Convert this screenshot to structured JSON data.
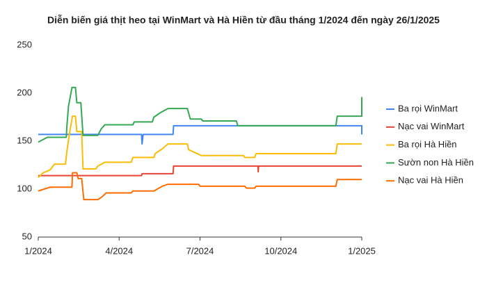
{
  "chart_data": {
    "type": "line",
    "title": "Diễn biến giá thịt heo tại WinMart và Hà Hiền từ đầu tháng 1/2024 đến ngày 26/1/2025",
    "xlim": [
      0,
      12
    ],
    "xticks": [
      {
        "value": 0,
        "label": "1/2024"
      },
      {
        "value": 3,
        "label": "4/2024"
      },
      {
        "value": 6,
        "label": "7/2024"
      },
      {
        "value": 9,
        "label": "10/2024"
      },
      {
        "value": 12,
        "label": "1/2025"
      }
    ],
    "ylim": [
      50,
      250
    ],
    "yticks": [
      50,
      100,
      150,
      200,
      250
    ],
    "grid": false,
    "legend": "right",
    "series": [
      {
        "name": "Ba rọi WinMart",
        "color": "#4285f4",
        "x": [
          0,
          3.83,
          3.85,
          3.89,
          5.0,
          5.02,
          12,
          12
        ],
        "values": [
          157,
          157,
          147,
          157,
          157,
          166,
          166,
          157
        ]
      },
      {
        "name": "Nạc vai WinMart",
        "color": "#ea4335",
        "x": [
          0,
          3.83,
          3.85,
          5.0,
          5.02,
          8.15,
          8.16,
          8.17,
          12
        ],
        "values": [
          114,
          114,
          116,
          116,
          124,
          124,
          118,
          124,
          124
        ]
      },
      {
        "name": "Ba rọi Hà Hiền",
        "color": "#fbbc04",
        "x": [
          0,
          0.18,
          0.44,
          0.6,
          1.01,
          1.06,
          1.17,
          1.27,
          1.38,
          1.43,
          1.61,
          1.66,
          2.13,
          2.21,
          2.47,
          3.45,
          3.51,
          4.29,
          4.34,
          4.6,
          4.81,
          5.53,
          5.58,
          6.05,
          7.61,
          7.66,
          8.03,
          8.08,
          11.04,
          11.09,
          12
        ],
        "values": [
          112,
          117,
          120,
          126,
          126,
          139,
          160,
          176,
          176,
          160,
          160,
          121,
          121,
          124,
          128,
          128,
          133,
          133,
          137,
          142,
          147,
          147,
          141,
          135,
          135,
          133,
          133,
          137,
          137,
          147,
          147
        ]
      },
      {
        "name": "Sườn non Hà Hiền",
        "color": "#34a853",
        "x": [
          0,
          0.34,
          1.04,
          1.06,
          1.12,
          1.25,
          1.38,
          1.43,
          1.58,
          1.66,
          2.21,
          2.34,
          2.47,
          3.51,
          3.56,
          4.23,
          4.29,
          4.55,
          4.81,
          5.53,
          5.64,
          6.05,
          6.1,
          7.35,
          7.4,
          11.04,
          11.09,
          12,
          12
        ],
        "values": [
          149,
          154,
          154,
          165,
          186,
          206,
          206,
          190,
          190,
          156,
          156,
          163,
          167,
          167,
          170,
          170,
          175,
          180,
          184,
          184,
          173,
          173,
          171,
          171,
          166,
          166,
          176,
          176,
          196
        ]
      },
      {
        "name": "Nạc vai Hà Hiền",
        "color": "#ff6d01",
        "x": [
          0,
          0.44,
          1.25,
          1.27,
          1.43,
          1.48,
          1.61,
          1.69,
          2.21,
          2.37,
          2.52,
          3.45,
          3.51,
          4.29,
          4.6,
          4.81,
          5.95,
          6.0,
          7.66,
          7.72,
          8.03,
          8.08,
          11.04,
          11.09,
          12
        ],
        "values": [
          98,
          102,
          102,
          117,
          117,
          111,
          111,
          89,
          89,
          92,
          96,
          96,
          98,
          98,
          103,
          105,
          105,
          103,
          103,
          101,
          101,
          103,
          103,
          110,
          110
        ]
      }
    ]
  }
}
